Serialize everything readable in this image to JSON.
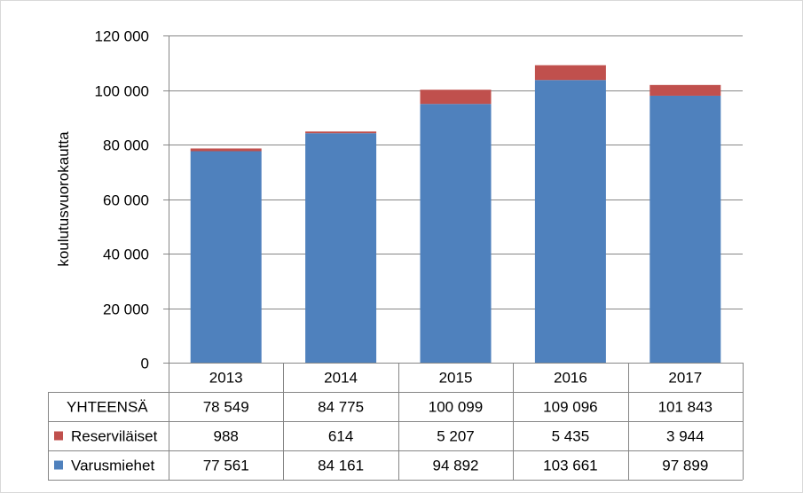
{
  "chart_data": {
    "type": "bar",
    "stacked": true,
    "title": "",
    "xlabel": "",
    "ylabel": "koulutusvuorokautta",
    "ylim": [
      0,
      120000
    ],
    "yticks": [
      0,
      20000,
      40000,
      60000,
      80000,
      100000,
      120000
    ],
    "ytick_labels": [
      "0",
      "20 000",
      "40 000",
      "60 000",
      "80 000",
      "100 000",
      "120 000"
    ],
    "grid": "horizontal",
    "legend": "data-table",
    "categories": [
      "2013",
      "2014",
      "2015",
      "2016",
      "2017"
    ],
    "series": [
      {
        "name": "Varusmiehet",
        "color": "#4f81bd",
        "values": [
          77561,
          84161,
          94892,
          103661,
          97899
        ],
        "labels": [
          "77 561",
          "84 161",
          "94 892",
          "103 661",
          "97 899"
        ]
      },
      {
        "name": "Reserviläiset",
        "color": "#c0504d",
        "values": [
          988,
          614,
          5207,
          5435,
          3944
        ],
        "labels": [
          "988",
          "614",
          "5 207",
          "5 435",
          "3 944"
        ]
      }
    ],
    "totals": {
      "name": "YHTEENSÄ",
      "values": [
        78549,
        84775,
        100099,
        109096,
        101843
      ],
      "labels": [
        "78 549",
        "84 775",
        "100 099",
        "109 096",
        "101 843"
      ]
    }
  }
}
